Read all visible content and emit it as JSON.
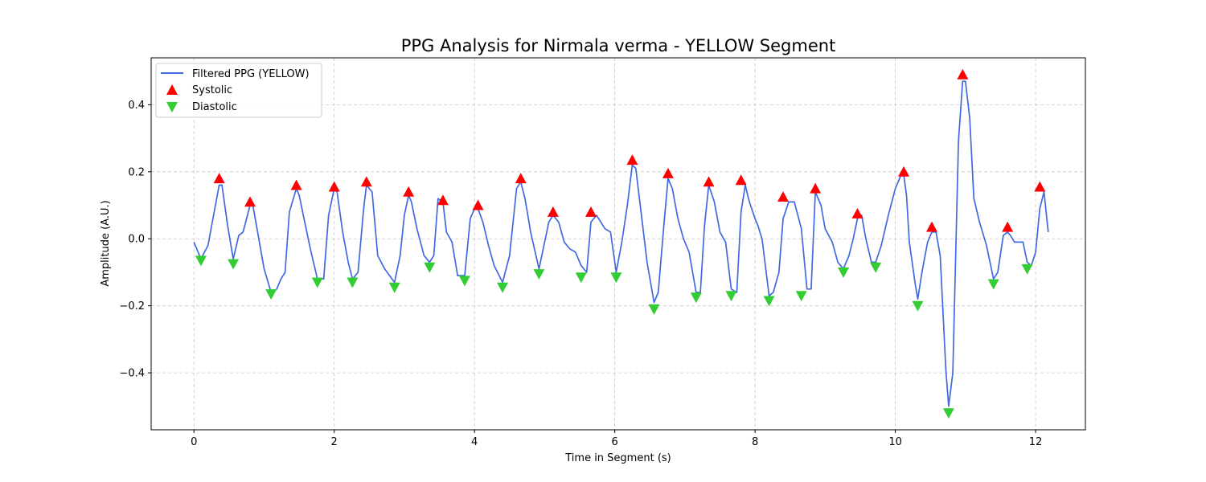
{
  "chart_data": {
    "type": "line",
    "title": "PPG Analysis for Nirmala verma - YELLOW Segment",
    "xlabel": "Time in Segment (s)",
    "ylabel": "Amplitude (A.U.)",
    "xlim": [
      -0.61,
      12.71
    ],
    "ylim": [
      -0.57,
      0.54
    ],
    "xticks": [
      0,
      2,
      4,
      6,
      8,
      10,
      12
    ],
    "xtick_labels": [
      "0",
      "2",
      "4",
      "6",
      "8",
      "10",
      "12"
    ],
    "yticks": [
      -0.4,
      -0.2,
      0.0,
      0.2,
      0.4
    ],
    "ytick_labels": [
      "−0.4",
      "−0.2",
      "0.0",
      "0.2",
      "0.4"
    ],
    "grid": true,
    "legend_position": "top-left",
    "colors": {
      "signal": "#4169e1",
      "systolic": "#ff0000",
      "diastolic": "#32cd32"
    },
    "series": [
      {
        "name": "Filtered PPG (YELLOW)",
        "kind": "line",
        "x": [
          0.0,
          0.1,
          0.2,
          0.28,
          0.36,
          0.4,
          0.48,
          0.56,
          0.64,
          0.7,
          0.8,
          0.84,
          0.9,
          1.0,
          1.1,
          1.18,
          1.24,
          1.3,
          1.36,
          1.46,
          1.5,
          1.58,
          1.66,
          1.76,
          1.85,
          1.92,
          2.0,
          2.04,
          2.12,
          2.2,
          2.26,
          2.34,
          2.42,
          2.46,
          2.54,
          2.62,
          2.72,
          2.86,
          2.94,
          3.0,
          3.06,
          3.1,
          3.18,
          3.28,
          3.36,
          3.42,
          3.48,
          3.55,
          3.6,
          3.68,
          3.76,
          3.86,
          3.94,
          4.0,
          4.05,
          4.12,
          4.2,
          4.28,
          4.4,
          4.5,
          4.6,
          4.66,
          4.72,
          4.8,
          4.92,
          5.0,
          5.06,
          5.12,
          5.2,
          5.28,
          5.36,
          5.44,
          5.52,
          5.6,
          5.66,
          5.74,
          5.86,
          5.94,
          6.02,
          6.1,
          6.18,
          6.25,
          6.3,
          6.38,
          6.46,
          6.56,
          6.62,
          6.7,
          6.76,
          6.82,
          6.9,
          6.98,
          7.06,
          7.16,
          7.22,
          7.28,
          7.34,
          7.42,
          7.5,
          7.58,
          7.66,
          7.74,
          7.8,
          7.86,
          7.92,
          8.0,
          8.04,
          8.1,
          8.2,
          8.26,
          8.34,
          8.4,
          8.48,
          8.56,
          8.66,
          8.74,
          8.8,
          8.86,
          8.94,
          9.0,
          9.1,
          9.18,
          9.26,
          9.34,
          9.4,
          9.46,
          9.52,
          9.58,
          9.66,
          9.72,
          9.8,
          9.9,
          10.0,
          10.08,
          10.12,
          10.16,
          10.2,
          10.28,
          10.32,
          10.38,
          10.46,
          10.52,
          10.58,
          10.64,
          10.72,
          10.76,
          10.82,
          10.9,
          10.96,
          11.0,
          11.06,
          11.12,
          11.2,
          11.3,
          11.4,
          11.46,
          11.54,
          11.6,
          11.64,
          11.7,
          11.76,
          11.82,
          11.88,
          11.94,
          12.0,
          12.06,
          12.12,
          12.18
        ],
        "y": [
          -0.01,
          -0.06,
          -0.02,
          0.07,
          0.16,
          0.16,
          0.04,
          -0.06,
          0.01,
          0.02,
          0.1,
          0.1,
          0.03,
          -0.09,
          -0.16,
          -0.15,
          -0.12,
          -0.1,
          0.08,
          0.15,
          0.13,
          0.05,
          -0.03,
          -0.12,
          -0.12,
          0.07,
          0.15,
          0.14,
          0.02,
          -0.07,
          -0.12,
          -0.1,
          0.09,
          0.16,
          0.14,
          -0.05,
          -0.09,
          -0.13,
          -0.05,
          0.07,
          0.13,
          0.11,
          0.03,
          -0.05,
          -0.07,
          -0.05,
          0.12,
          0.11,
          0.02,
          -0.01,
          -0.11,
          -0.11,
          0.06,
          0.09,
          0.09,
          0.05,
          -0.02,
          -0.08,
          -0.13,
          -0.05,
          0.15,
          0.17,
          0.12,
          0.02,
          -0.09,
          -0.01,
          0.05,
          0.07,
          0.05,
          -0.01,
          -0.03,
          -0.04,
          -0.08,
          -0.1,
          0.05,
          0.07,
          0.03,
          0.02,
          -0.1,
          -0.01,
          0.1,
          0.22,
          0.21,
          0.07,
          -0.07,
          -0.19,
          -0.16,
          0.04,
          0.18,
          0.15,
          0.06,
          0.0,
          -0.04,
          -0.16,
          -0.16,
          0.04,
          0.16,
          0.11,
          0.02,
          -0.01,
          -0.15,
          -0.16,
          0.08,
          0.16,
          0.11,
          0.06,
          0.04,
          0.0,
          -0.17,
          -0.16,
          -0.1,
          0.06,
          0.11,
          0.11,
          0.03,
          -0.15,
          -0.15,
          0.14,
          0.1,
          0.03,
          -0.01,
          -0.07,
          -0.09,
          -0.05,
          0.0,
          0.06,
          0.07,
          0.0,
          -0.07,
          -0.07,
          -0.02,
          0.07,
          0.15,
          0.19,
          0.19,
          0.13,
          -0.01,
          -0.13,
          -0.18,
          -0.1,
          -0.01,
          0.02,
          0.02,
          -0.05,
          -0.39,
          -0.5,
          -0.4,
          0.29,
          0.47,
          0.47,
          0.36,
          0.12,
          0.05,
          -0.02,
          -0.12,
          -0.1,
          0.01,
          0.02,
          0.01,
          -0.01,
          -0.01,
          -0.01,
          -0.07,
          -0.08,
          -0.04,
          0.09,
          0.14,
          0.02
        ]
      },
      {
        "name": "Systolic",
        "kind": "marker-up",
        "x": [
          0.36,
          0.8,
          1.46,
          2.0,
          2.46,
          3.06,
          3.55,
          4.05,
          4.66,
          5.12,
          5.66,
          6.25,
          6.76,
          7.34,
          7.8,
          8.4,
          8.86,
          9.46,
          10.12,
          10.52,
          10.96,
          11.6,
          12.06
        ],
        "y": [
          0.18,
          0.11,
          0.16,
          0.155,
          0.17,
          0.14,
          0.115,
          0.1,
          0.18,
          0.08,
          0.08,
          0.235,
          0.195,
          0.17,
          0.175,
          0.125,
          0.15,
          0.075,
          0.2,
          0.035,
          0.49,
          0.035,
          0.155
        ]
      },
      {
        "name": "Diastolic",
        "kind": "marker-down",
        "x": [
          0.1,
          0.56,
          1.1,
          1.76,
          2.26,
          2.86,
          3.36,
          3.86,
          4.4,
          4.92,
          5.52,
          6.02,
          6.56,
          7.16,
          7.66,
          8.2,
          8.66,
          9.26,
          9.72,
          10.32,
          10.76,
          11.4,
          11.88
        ],
        "y": [
          -0.065,
          -0.075,
          -0.165,
          -0.13,
          -0.13,
          -0.145,
          -0.085,
          -0.125,
          -0.145,
          -0.105,
          -0.115,
          -0.115,
          -0.21,
          -0.175,
          -0.17,
          -0.185,
          -0.17,
          -0.1,
          -0.085,
          -0.2,
          -0.52,
          -0.135,
          -0.09
        ]
      }
    ]
  }
}
